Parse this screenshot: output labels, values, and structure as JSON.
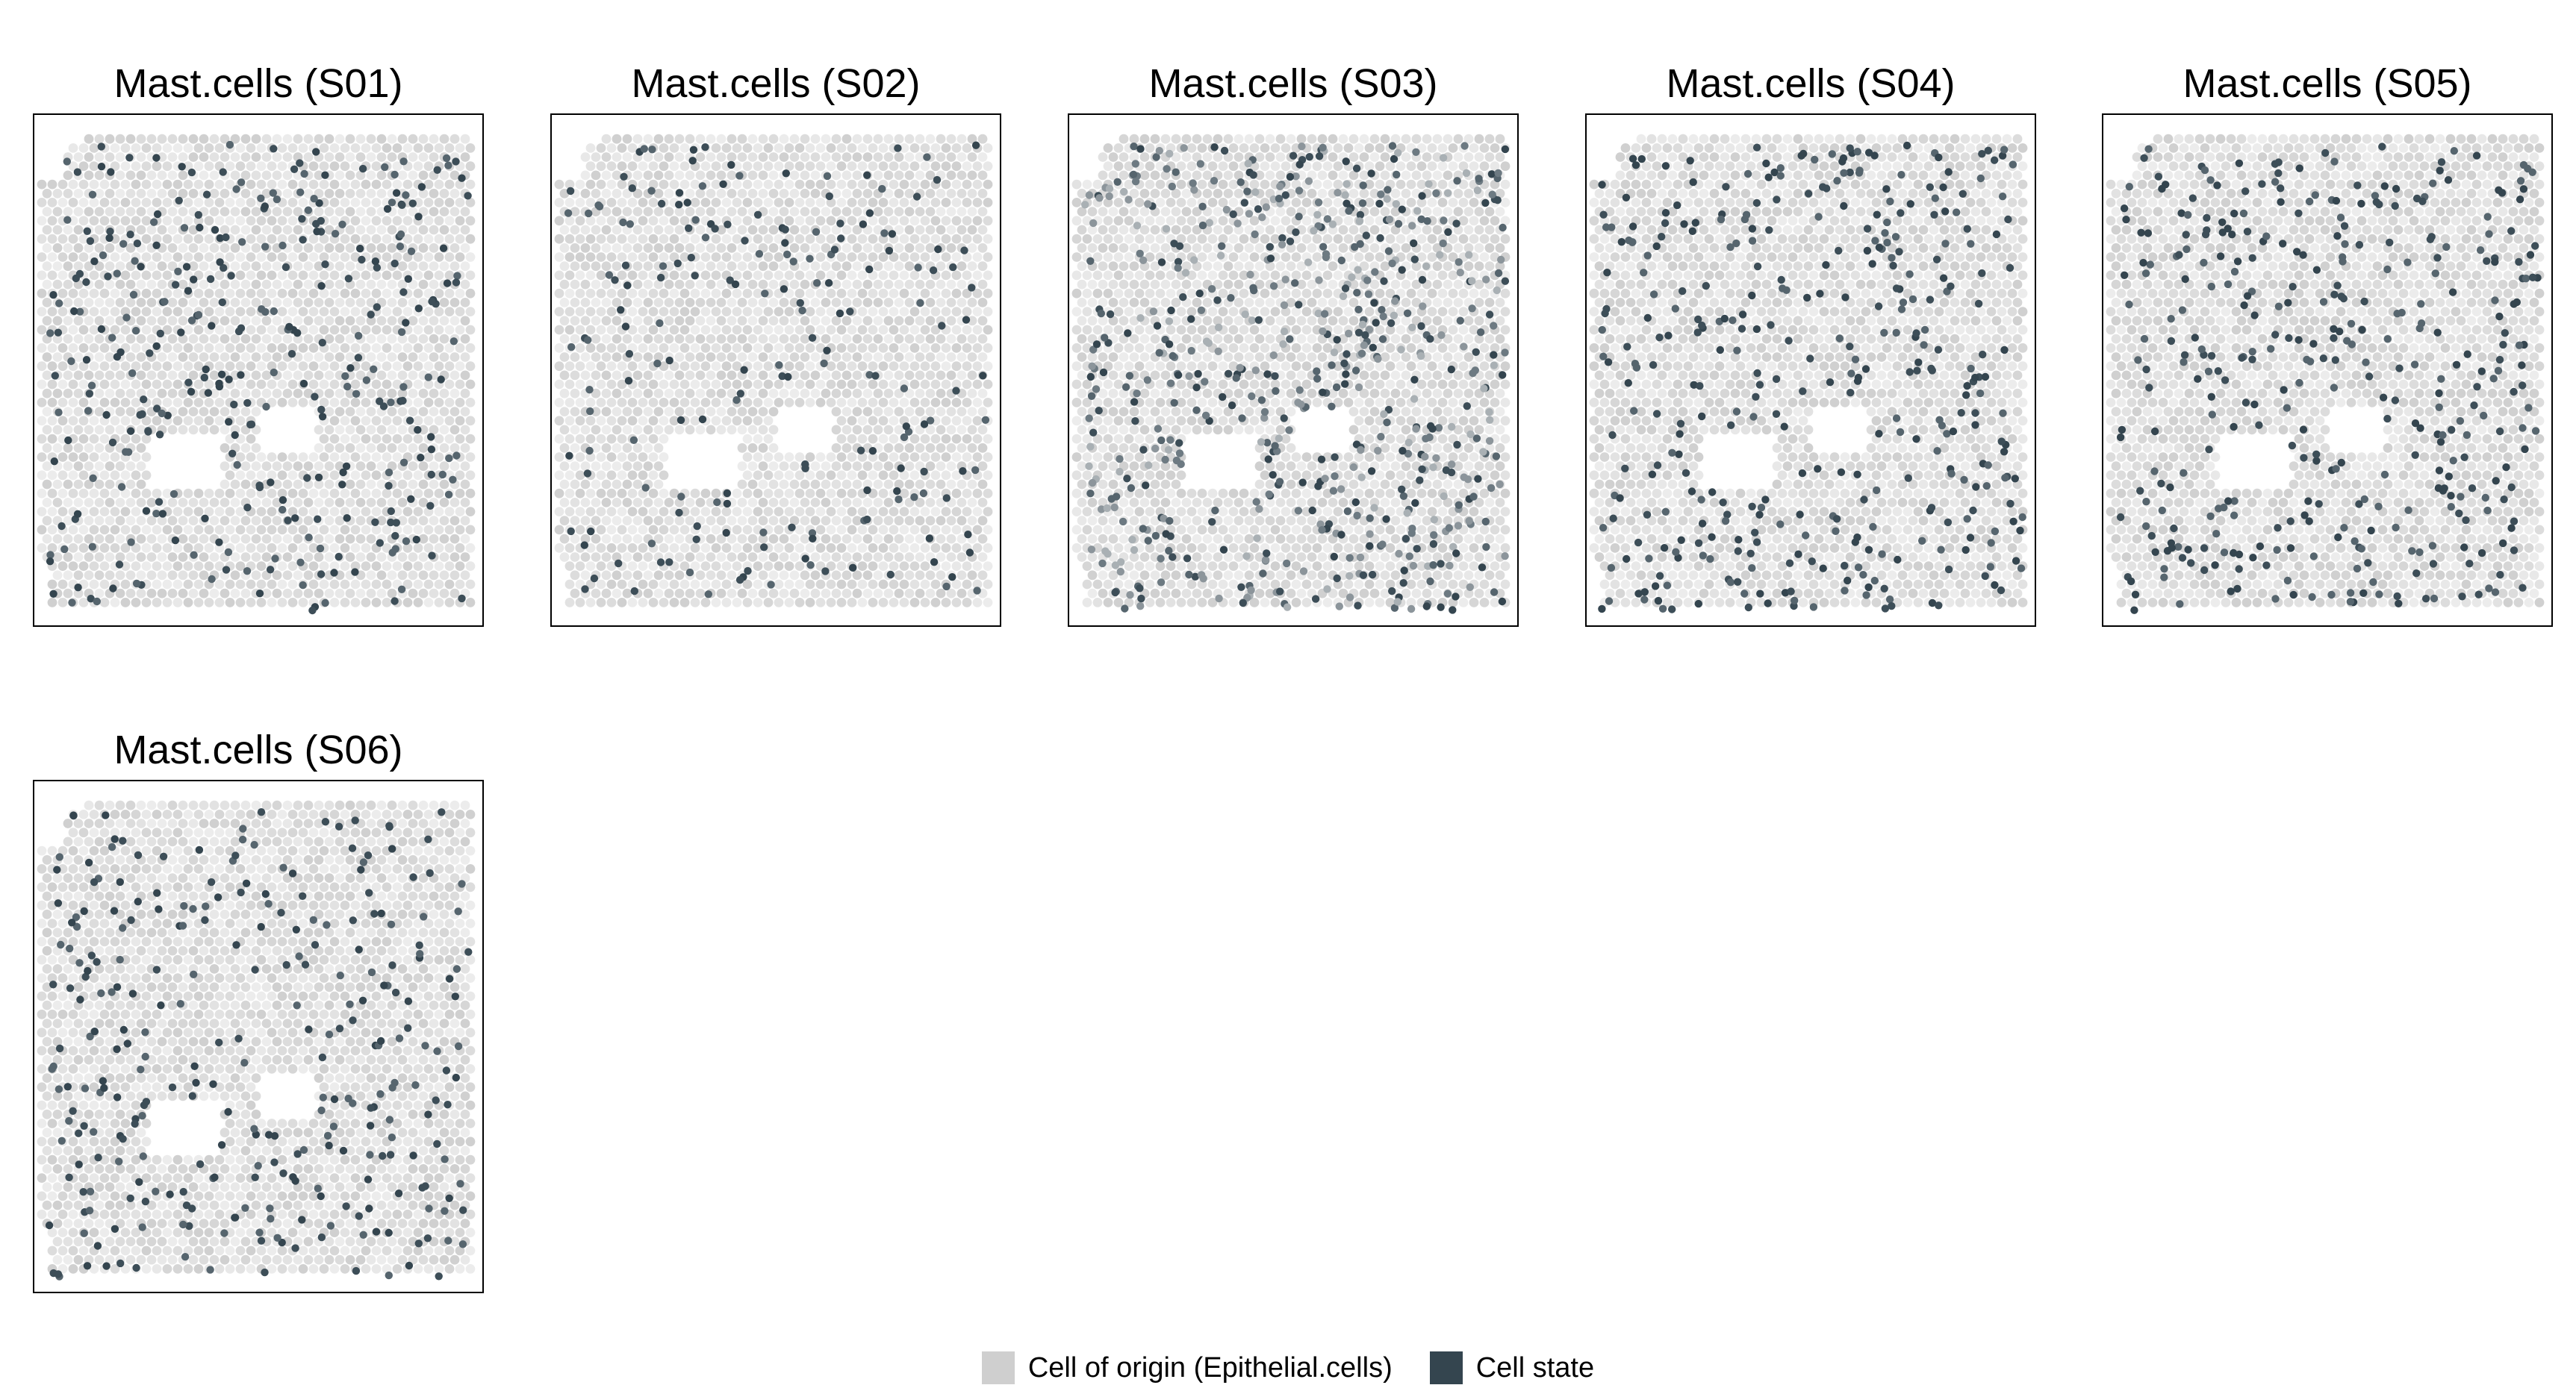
{
  "chart_data": {
    "type": "scatter",
    "facet_titles": [
      "Mast.cells (S01)",
      "Mast.cells (S02)",
      "Mast.cells (S03)",
      "Mast.cells (S04)",
      "Mast.cells (S05)",
      "Mast.cells (S06)"
    ],
    "legend": [
      {
        "label": "Cell of origin (Epithelial.cells)",
        "color": "#cfcfcf"
      },
      {
        "label": "Cell state",
        "color": "#34454f"
      }
    ],
    "legend_position": "bottom",
    "relative_cell_state_density": [
      0.45,
      0.2,
      1.0,
      0.55,
      0.55,
      0.4
    ],
    "grid": false
  }
}
